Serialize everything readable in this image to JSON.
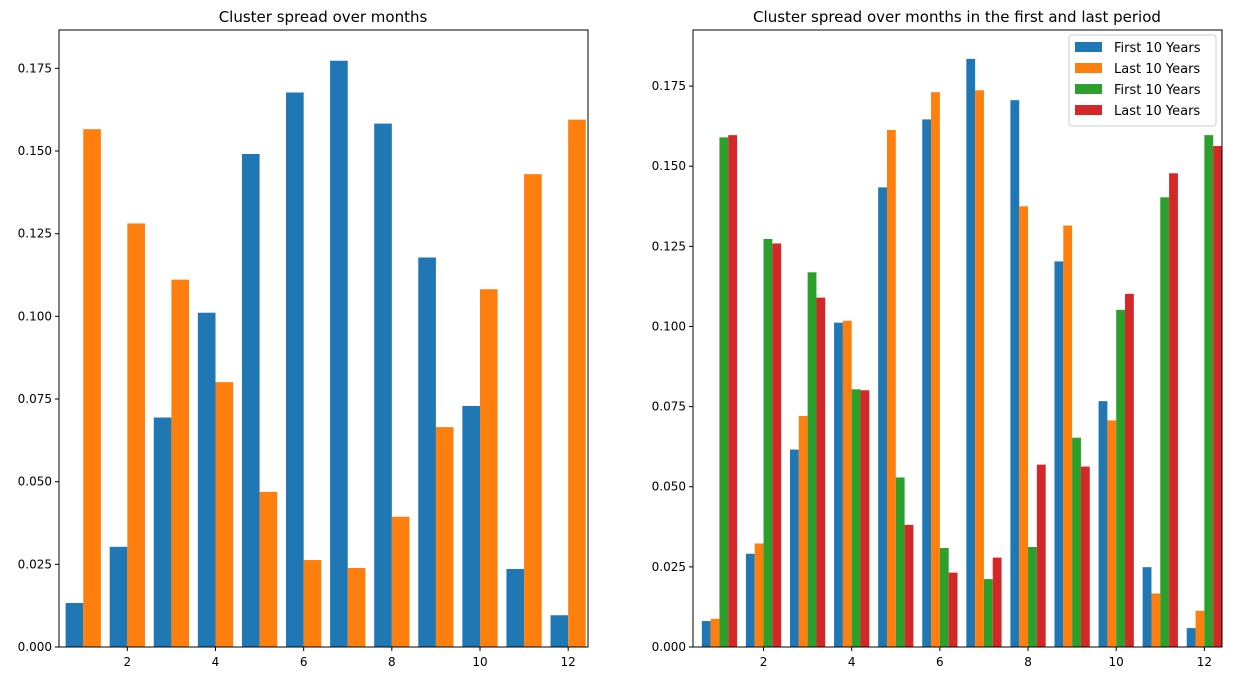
{
  "chart_data": [
    {
      "type": "bar",
      "title": "Cluster spread over months",
      "xlabel": "",
      "ylabel": "",
      "x": [
        1,
        2,
        3,
        4,
        5,
        6,
        7,
        8,
        9,
        10,
        11,
        12
      ],
      "xlim": [
        0.45,
        12.45
      ],
      "ylim": [
        0,
        0.1866
      ],
      "xticks": [
        2,
        4,
        6,
        8,
        10,
        12
      ],
      "xtick_labels": [
        "2",
        "4",
        "6",
        "8",
        "10",
        "12"
      ],
      "yticks": [
        0.0,
        0.025,
        0.05,
        0.075,
        0.1,
        0.125,
        0.15,
        0.175
      ],
      "ytick_labels": [
        "0.000",
        "0.025",
        "0.050",
        "0.075",
        "0.100",
        "0.125",
        "0.150",
        "0.175"
      ],
      "grid": false,
      "legend": "none",
      "series": [
        {
          "color": "#1f77b4",
          "values": [
            0.0133,
            0.0303,
            0.0694,
            0.1011,
            0.1491,
            0.1677,
            0.1773,
            0.1583,
            0.1178,
            0.0729,
            0.0236,
            0.0096
          ]
        },
        {
          "color": "#ff7f0e",
          "values": [
            0.1566,
            0.1281,
            0.1111,
            0.0801,
            0.0469,
            0.0263,
            0.0239,
            0.0394,
            0.0665,
            0.1082,
            0.143,
            0.1595
          ]
        }
      ]
    },
    {
      "type": "bar",
      "title": "Cluster spread over months in the first and last period",
      "xlabel": "",
      "ylabel": "",
      "x": [
        1,
        2,
        3,
        4,
        5,
        6,
        7,
        8,
        9,
        10,
        11,
        12
      ],
      "xlim": [
        0.4,
        12.4
      ],
      "ylim": [
        0,
        0.1925
      ],
      "xticks": [
        2,
        4,
        6,
        8,
        10,
        12
      ],
      "xtick_labels": [
        "2",
        "4",
        "6",
        "8",
        "10",
        "12"
      ],
      "yticks": [
        0.0,
        0.025,
        0.05,
        0.075,
        0.1,
        0.125,
        0.15,
        0.175
      ],
      "ytick_labels": [
        "0.000",
        "0.025",
        "0.050",
        "0.075",
        "0.100",
        "0.125",
        "0.150",
        "0.175"
      ],
      "grid": false,
      "legend": "top-right",
      "series": [
        {
          "name": "First 10 Years",
          "color": "#1f77b4",
          "values": [
            0.0081,
            0.0291,
            0.0616,
            0.1012,
            0.1434,
            0.1646,
            0.1835,
            0.1706,
            0.1203,
            0.0767,
            0.0249,
            0.0059
          ]
        },
        {
          "name": "Last 10 Years",
          "color": "#ff7f0e",
          "values": [
            0.0088,
            0.0323,
            0.0721,
            0.1018,
            0.1613,
            0.1731,
            0.1737,
            0.1375,
            0.1315,
            0.0707,
            0.0167,
            0.0113
          ]
        },
        {
          "name": "First 10 Years",
          "color": "#2ca02c",
          "values": [
            0.159,
            0.1273,
            0.1169,
            0.0804,
            0.0529,
            0.0309,
            0.0212,
            0.0312,
            0.0653,
            0.1052,
            0.1403,
            0.1597
          ]
        },
        {
          "name": "Last 10 Years",
          "color": "#d62728",
          "values": [
            0.1597,
            0.1259,
            0.109,
            0.0801,
            0.0381,
            0.0232,
            0.0279,
            0.0569,
            0.0563,
            0.1102,
            0.1478,
            0.1563
          ]
        }
      ]
    }
  ]
}
